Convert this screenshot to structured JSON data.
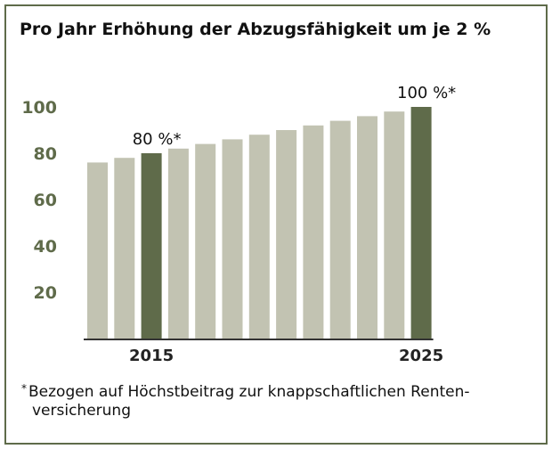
{
  "title": "Pro Jahr Erhöhung der Abzugsfähigkeit um je 2 %",
  "footnote": {
    "marker": "*",
    "line1": "Bezogen auf Höchstbeitrag zur knappschaftlichen Renten-",
    "line2": "versicherung"
  },
  "colors": {
    "regular_bar": "#c2c3b2",
    "highlight_bar": "#5f6b4a",
    "axis_text": "#5f6b4a",
    "frame": "#5f6b4a"
  },
  "chart_data": {
    "type": "bar",
    "x": [
      2013,
      2014,
      2015,
      2016,
      2017,
      2018,
      2019,
      2020,
      2021,
      2022,
      2023,
      2024,
      2025
    ],
    "values": [
      76,
      78,
      80,
      82,
      84,
      86,
      88,
      90,
      92,
      94,
      96,
      98,
      100
    ],
    "highlight": [
      2015,
      2025
    ],
    "data_labels": [
      {
        "x": 2015,
        "text": "80 %*"
      },
      {
        "x": 2025,
        "text": "100 %*"
      }
    ],
    "x_tick_labels": [
      {
        "x": 2015,
        "text": "2015"
      },
      {
        "x": 2025,
        "text": "2025"
      }
    ],
    "y_ticks": [
      20,
      40,
      60,
      80,
      100
    ],
    "ylim": [
      0,
      100
    ],
    "grid": false
  }
}
